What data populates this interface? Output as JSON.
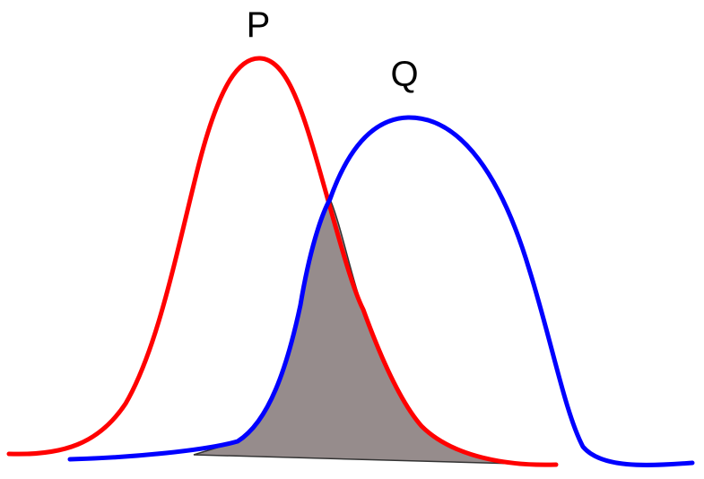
{
  "diagram": {
    "labels": {
      "p": "P",
      "q": "Q"
    },
    "colors": {
      "p_curve": "#ff0000",
      "q_curve": "#0000ff",
      "overlap_fill": "#968c8c",
      "overlap_stroke": "#333333",
      "label": "#000000",
      "background": "#ffffff"
    }
  }
}
